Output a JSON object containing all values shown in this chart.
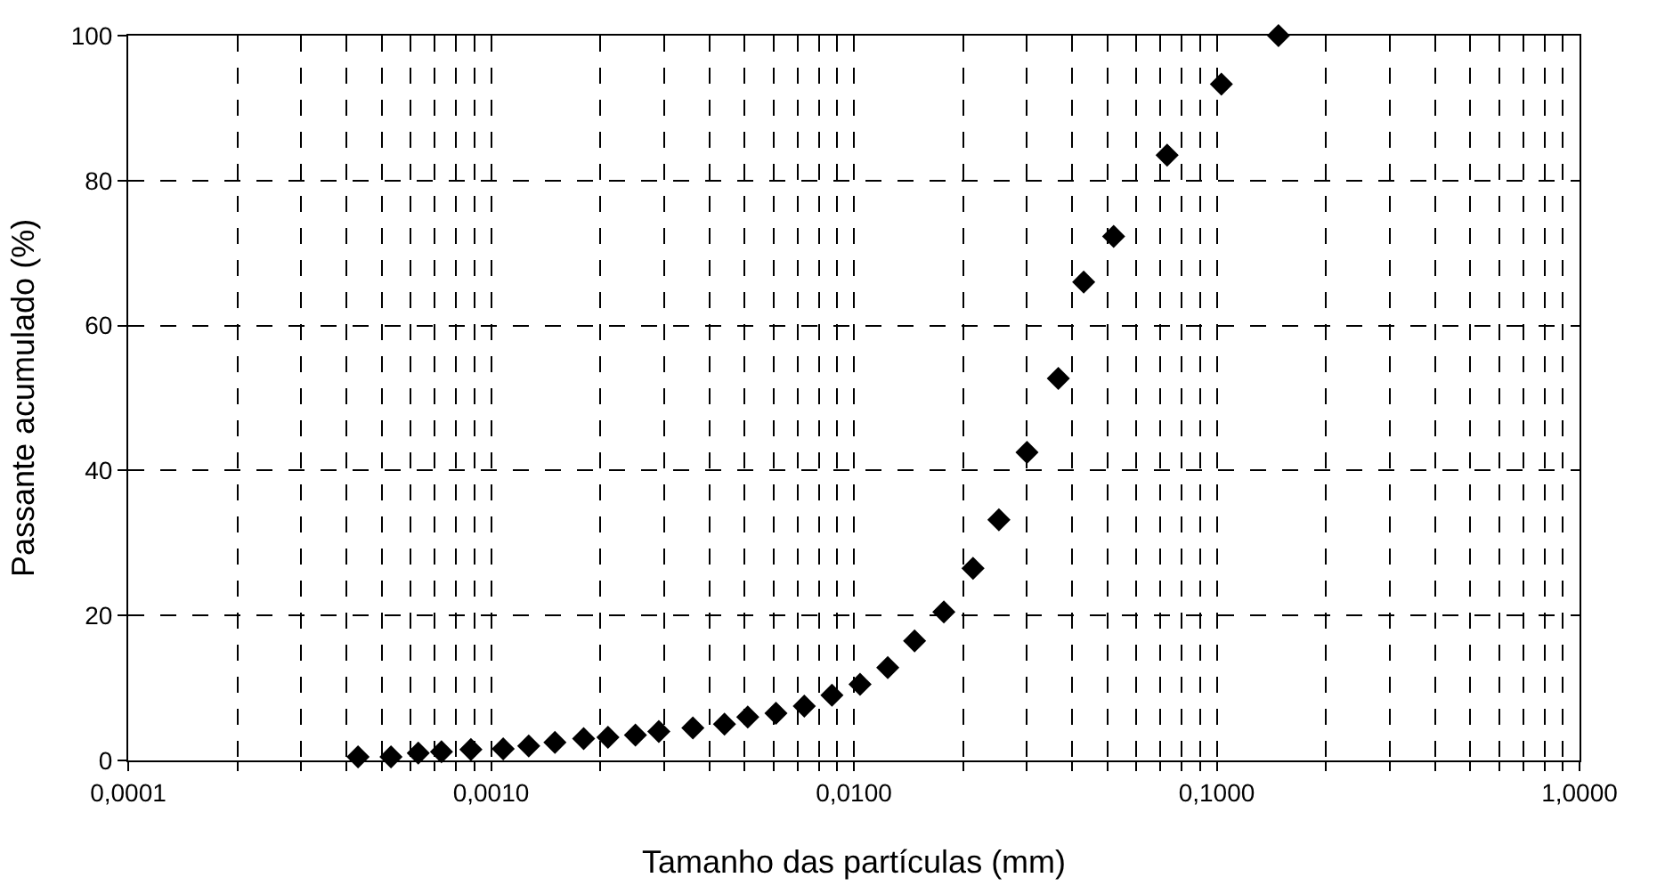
{
  "chart_data": {
    "type": "scatter",
    "xlabel": "Tamanho das partículas (mm)",
    "ylabel": "Passante acumulado (%)",
    "log": "x",
    "grid": true,
    "marker": "diamond",
    "x": [
      0.00043,
      0.00053,
      0.00063,
      0.00073,
      0.00088,
      0.00108,
      0.00127,
      0.0015,
      0.0018,
      0.0021,
      0.0025,
      0.0029,
      0.0036,
      0.0044,
      0.0051,
      0.0061,
      0.0073,
      0.0087,
      0.0104,
      0.0124,
      0.0147,
      0.0177,
      0.0213,
      0.0251,
      0.03,
      0.0366,
      0.043,
      0.052,
      0.073,
      0.103,
      0.148
    ],
    "series": [
      {
        "color": "#000000",
        "values": [
          0.5,
          0.5,
          1,
          1.2,
          1.5,
          1.6,
          2,
          2.5,
          3,
          3.2,
          3.5,
          4,
          4.5,
          5,
          6,
          6.5,
          7.5,
          9,
          10.5,
          12.8,
          16.5,
          20.5,
          26.5,
          33.2,
          42.5,
          52.7,
          66,
          72.3,
          83.5,
          93.3,
          100
        ]
      }
    ],
    "xlim": [
      0.0001,
      1
    ],
    "ylim": [
      0,
      100
    ],
    "yticks": [
      0,
      20,
      40,
      60,
      80,
      100
    ],
    "xticks": [
      {
        "value": 0.0001,
        "label": "0,0001"
      },
      {
        "value": 0.0002,
        "label": null
      },
      {
        "value": 0.0003,
        "label": null
      },
      {
        "value": 0.0004,
        "label": null
      },
      {
        "value": 0.0005,
        "label": null
      },
      {
        "value": 0.0006,
        "label": null
      },
      {
        "value": 0.0007,
        "label": null
      },
      {
        "value": 0.0008,
        "label": null
      },
      {
        "value": 0.0009,
        "label": null
      },
      {
        "value": 0.001,
        "label": "0,0010"
      },
      {
        "value": 0.002,
        "label": null
      },
      {
        "value": 0.003,
        "label": null
      },
      {
        "value": 0.004,
        "label": null
      },
      {
        "value": 0.005,
        "label": null
      },
      {
        "value": 0.006,
        "label": null
      },
      {
        "value": 0.007,
        "label": null
      },
      {
        "value": 0.008,
        "label": null
      },
      {
        "value": 0.009,
        "label": null
      },
      {
        "value": 0.01,
        "label": "0,0100"
      },
      {
        "value": 0.02,
        "label": null
      },
      {
        "value": 0.03,
        "label": null
      },
      {
        "value": 0.04,
        "label": null
      },
      {
        "value": 0.05,
        "label": null
      },
      {
        "value": 0.06,
        "label": null
      },
      {
        "value": 0.07,
        "label": null
      },
      {
        "value": 0.08,
        "label": null
      },
      {
        "value": 0.09,
        "label": null
      },
      {
        "value": 0.1,
        "label": "0,1000"
      },
      {
        "value": 0.2,
        "label": null
      },
      {
        "value": 0.3,
        "label": null
      },
      {
        "value": 0.4,
        "label": null
      },
      {
        "value": 0.5,
        "label": null
      },
      {
        "value": 0.6,
        "label": null
      },
      {
        "value": 0.7,
        "label": null
      },
      {
        "value": 0.8,
        "label": null
      },
      {
        "value": 0.9,
        "label": null
      },
      {
        "value": 1,
        "label": "1,0000"
      }
    ]
  }
}
